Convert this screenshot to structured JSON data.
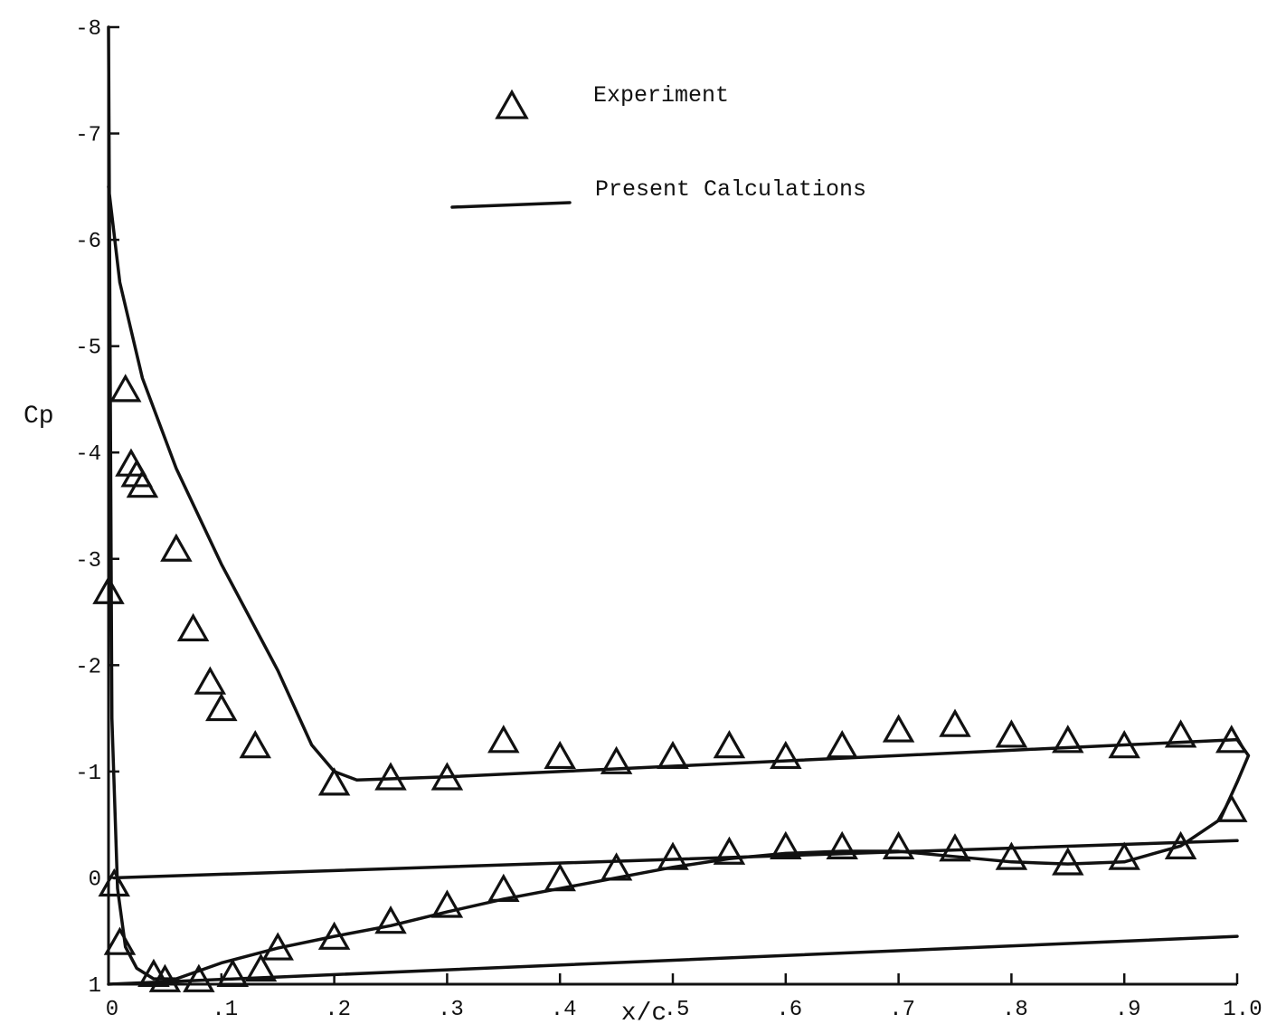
{
  "chart_data": {
    "type": "scatter",
    "title": "",
    "xlabel": "x/c",
    "ylabel": "Cp",
    "xlim": [
      0,
      1.0
    ],
    "ylim": [
      1,
      -8
    ],
    "x_ticks": [
      {
        "value": 0,
        "label": "0"
      },
      {
        "value": 0.1,
        "label": ".1"
      },
      {
        "value": 0.2,
        "label": ".2"
      },
      {
        "value": 0.3,
        "label": ".3"
      },
      {
        "value": 0.4,
        "label": ".4"
      },
      {
        "value": 0.5,
        "label": ".5"
      },
      {
        "value": 0.6,
        "label": ".6"
      },
      {
        "value": 0.7,
        "label": ".7"
      },
      {
        "value": 0.8,
        "label": ".8"
      },
      {
        "value": 0.9,
        "label": ".9"
      },
      {
        "value": 1.0,
        "label": "1.0"
      }
    ],
    "y_ticks": [
      {
        "value": -8,
        "label": "-8"
      },
      {
        "value": -7,
        "label": "-7"
      },
      {
        "value": -6,
        "label": "-6"
      },
      {
        "value": -5,
        "label": "-5"
      },
      {
        "value": -4,
        "label": "-4"
      },
      {
        "value": -3,
        "label": "-3"
      },
      {
        "value": -2,
        "label": "-2"
      },
      {
        "value": -1,
        "label": "-1"
      },
      {
        "value": 0,
        "label": "0"
      },
      {
        "value": 1,
        "label": "1"
      }
    ],
    "legend": {
      "placement": "top-center",
      "entries": [
        {
          "name": "Experiment",
          "marker": "triangle"
        },
        {
          "name": "Present Calculations",
          "marker": "line"
        }
      ]
    },
    "series": [
      {
        "name": "Experiment",
        "kind": "markers",
        "points": [
          {
            "x": 0.0,
            "y": -2.7
          },
          {
            "x": 0.005,
            "y": 0.05
          },
          {
            "x": 0.01,
            "y": 0.6
          },
          {
            "x": 0.015,
            "y": -4.6
          },
          {
            "x": 0.02,
            "y": -3.9
          },
          {
            "x": 0.025,
            "y": -3.8
          },
          {
            "x": 0.03,
            "y": -3.7
          },
          {
            "x": 0.04,
            "y": 0.9
          },
          {
            "x": 0.05,
            "y": 0.95
          },
          {
            "x": 0.06,
            "y": -3.1
          },
          {
            "x": 0.075,
            "y": -2.35
          },
          {
            "x": 0.09,
            "y": -1.85
          },
          {
            "x": 0.1,
            "y": -1.6
          },
          {
            "x": 0.08,
            "y": 0.95
          },
          {
            "x": 0.11,
            "y": 0.9
          },
          {
            "x": 0.13,
            "y": -1.25
          },
          {
            "x": 0.135,
            "y": 0.85
          },
          {
            "x": 0.15,
            "y": 0.65
          },
          {
            "x": 0.2,
            "y": 0.55
          },
          {
            "x": 0.2,
            "y": -0.9
          },
          {
            "x": 0.25,
            "y": 0.4
          },
          {
            "x": 0.25,
            "y": -0.95
          },
          {
            "x": 0.3,
            "y": 0.25
          },
          {
            "x": 0.3,
            "y": -0.95
          },
          {
            "x": 0.35,
            "y": 0.1
          },
          {
            "x": 0.35,
            "y": -1.3
          },
          {
            "x": 0.4,
            "y": 0.0
          },
          {
            "x": 0.4,
            "y": -1.15
          },
          {
            "x": 0.45,
            "y": -0.1
          },
          {
            "x": 0.45,
            "y": -1.1
          },
          {
            "x": 0.5,
            "y": -0.2
          },
          {
            "x": 0.5,
            "y": -1.15
          },
          {
            "x": 0.55,
            "y": -0.25
          },
          {
            "x": 0.55,
            "y": -1.25
          },
          {
            "x": 0.6,
            "y": -0.3
          },
          {
            "x": 0.6,
            "y": -1.15
          },
          {
            "x": 0.65,
            "y": -0.3
          },
          {
            "x": 0.65,
            "y": -1.25
          },
          {
            "x": 0.7,
            "y": -0.3
          },
          {
            "x": 0.7,
            "y": -1.4
          },
          {
            "x": 0.75,
            "y": -0.28
          },
          {
            "x": 0.75,
            "y": -1.45
          },
          {
            "x": 0.8,
            "y": -0.2
          },
          {
            "x": 0.8,
            "y": -1.35
          },
          {
            "x": 0.85,
            "y": -0.15
          },
          {
            "x": 0.85,
            "y": -1.3
          },
          {
            "x": 0.9,
            "y": -0.2
          },
          {
            "x": 0.9,
            "y": -1.25
          },
          {
            "x": 0.95,
            "y": -0.3
          },
          {
            "x": 0.95,
            "y": -1.35
          },
          {
            "x": 0.995,
            "y": -0.65
          },
          {
            "x": 0.995,
            "y": -1.3
          }
        ]
      },
      {
        "name": "Present Calculations",
        "kind": "lines",
        "curves": [
          {
            "points": [
              {
                "x": 0.0,
                "y": -6.5
              },
              {
                "x": 0.01,
                "y": -5.6
              },
              {
                "x": 0.03,
                "y": -4.7
              },
              {
                "x": 0.06,
                "y": -3.85
              },
              {
                "x": 0.1,
                "y": -2.95
              },
              {
                "x": 0.15,
                "y": -1.95
              },
              {
                "x": 0.18,
                "y": -1.25
              },
              {
                "x": 0.2,
                "y": -1.0
              },
              {
                "x": 0.22,
                "y": -0.92
              },
              {
                "x": 0.3,
                "y": -0.95
              },
              {
                "x": 0.4,
                "y": -1.0
              },
              {
                "x": 0.5,
                "y": -1.05
              },
              {
                "x": 0.6,
                "y": -1.1
              },
              {
                "x": 0.7,
                "y": -1.15
              },
              {
                "x": 0.8,
                "y": -1.2
              },
              {
                "x": 0.9,
                "y": -1.25
              },
              {
                "x": 1.0,
                "y": -1.3
              },
              {
                "x": 1.01,
                "y": -1.15
              },
              {
                "x": 1.0,
                "y": -0.9
              },
              {
                "x": 0.985,
                "y": -0.55
              },
              {
                "x": 0.95,
                "y": -0.3
              },
              {
                "x": 0.9,
                "y": -0.15
              },
              {
                "x": 0.85,
                "y": -0.13
              },
              {
                "x": 0.8,
                "y": -0.15
              },
              {
                "x": 0.75,
                "y": -0.2
              },
              {
                "x": 0.7,
                "y": -0.25
              },
              {
                "x": 0.65,
                "y": -0.25
              },
              {
                "x": 0.6,
                "y": -0.23
              },
              {
                "x": 0.55,
                "y": -0.18
              },
              {
                "x": 0.5,
                "y": -0.1
              },
              {
                "x": 0.45,
                "y": 0.0
              },
              {
                "x": 0.4,
                "y": 0.1
              },
              {
                "x": 0.35,
                "y": 0.2
              },
              {
                "x": 0.3,
                "y": 0.32
              },
              {
                "x": 0.25,
                "y": 0.45
              },
              {
                "x": 0.2,
                "y": 0.55
              },
              {
                "x": 0.15,
                "y": 0.66
              },
              {
                "x": 0.1,
                "y": 0.8
              },
              {
                "x": 0.06,
                "y": 0.95
              },
              {
                "x": 0.04,
                "y": 0.95
              },
              {
                "x": 0.025,
                "y": 0.85
              },
              {
                "x": 0.015,
                "y": 0.65
              },
              {
                "x": 0.008,
                "y": 0.1
              },
              {
                "x": 0.003,
                "y": -1.5
              },
              {
                "x": 0.0,
                "y": -8.0
              }
            ]
          },
          {
            "points": [
              {
                "x": 0.005,
                "y": 0.0
              },
              {
                "x": 1.0,
                "y": -0.35
              }
            ]
          },
          {
            "points": [
              {
                "x": 0.0,
                "y": 1.0
              },
              {
                "x": 1.0,
                "y": 0.55
              }
            ]
          }
        ]
      }
    ]
  }
}
